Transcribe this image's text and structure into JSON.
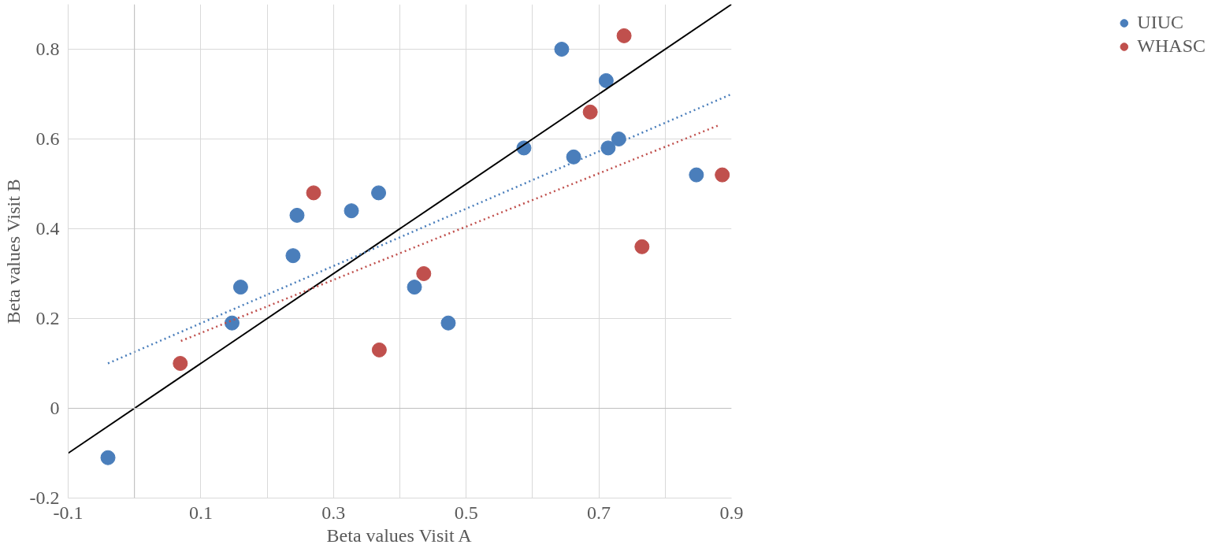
{
  "chart_data": {
    "type": "scatter",
    "xlabel": "Beta values Visit A",
    "ylabel": "Beta values Visit B",
    "xlim": [
      -0.1,
      0.9
    ],
    "ylim": [
      -0.2,
      0.9
    ],
    "xticks": [
      -0.1,
      {
        "value": 0,
        "label": null
      },
      0.1,
      {
        "value": 0.2,
        "label": null
      },
      0.3,
      {
        "value": 0.4,
        "label": null
      },
      0.5,
      {
        "value": 0.6,
        "label": null
      },
      0.7,
      {
        "value": 0.8,
        "label": null
      },
      0.9
    ],
    "yticks": [
      -0.2,
      0,
      0.2,
      0.4,
      0.6,
      0.8
    ],
    "grid": true,
    "legend": "right",
    "marker": "circle",
    "series": [
      {
        "name": "UIUC",
        "color": "#4a7ebb",
        "x": [
          -0.04,
          0.147,
          0.16,
          0.239,
          0.245,
          0.327,
          0.368,
          0.422,
          0.473,
          0.587,
          0.644,
          0.662,
          0.711,
          0.714,
          0.73,
          0.847
        ],
        "values": [
          -0.11,
          0.19,
          0.27,
          0.34,
          0.43,
          0.44,
          0.48,
          0.27,
          0.19,
          0.58,
          0.8,
          0.56,
          0.73,
          0.58,
          0.6,
          0.52
        ]
      },
      {
        "name": "WHASC",
        "color": "#c0504d",
        "x": [
          0.069,
          0.27,
          0.369,
          0.436,
          0.687,
          0.738,
          0.765,
          0.886
        ],
        "values": [
          0.1,
          0.48,
          0.13,
          0.3,
          0.66,
          0.83,
          0.36,
          0.52
        ]
      },
      {
        "type": "line",
        "color": "#000000",
        "line_style": "solid",
        "marker": "none",
        "x": [
          -0.1,
          0.9
        ],
        "values": [
          -0.1,
          0.9
        ]
      },
      {
        "type": "line",
        "color": "#4a7ebb",
        "line_style": "dotted",
        "marker": "none",
        "x": [
          -0.04,
          0.9
        ],
        "values": [
          0.1,
          0.7
        ]
      },
      {
        "type": "line",
        "color": "#c0504d",
        "line_style": "dotted",
        "marker": "none",
        "x": [
          0.07,
          0.88
        ],
        "values": [
          0.15,
          0.63
        ]
      }
    ]
  }
}
